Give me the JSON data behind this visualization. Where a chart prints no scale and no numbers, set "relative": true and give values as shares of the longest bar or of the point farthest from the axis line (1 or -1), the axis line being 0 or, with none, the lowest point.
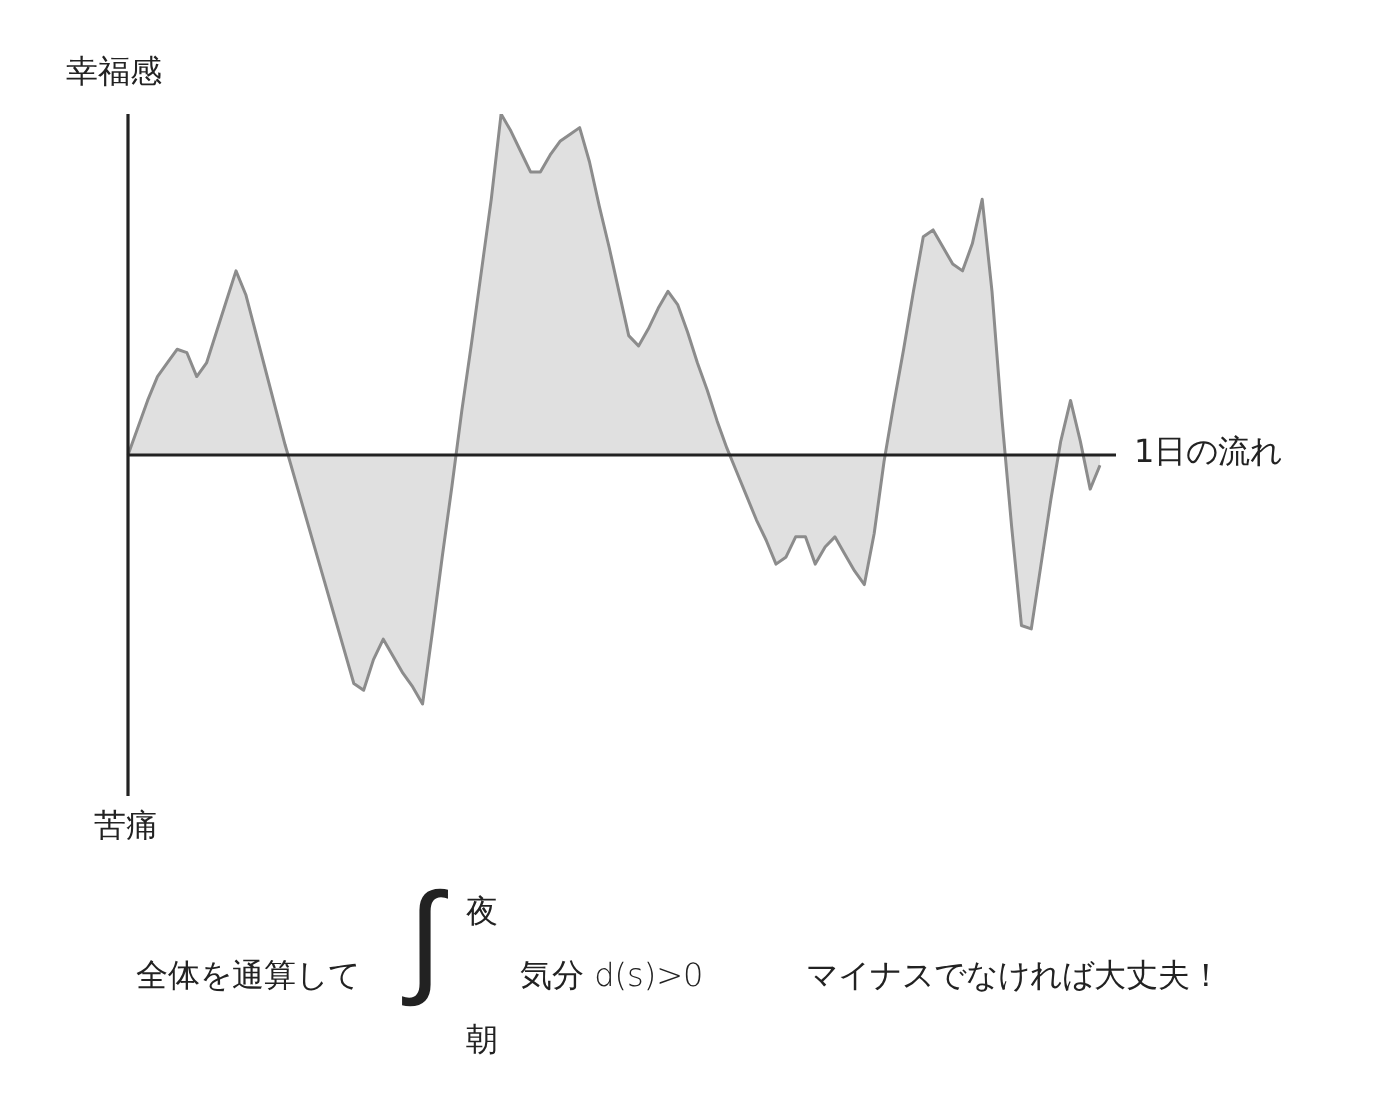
{
  "chart_data": {
    "type": "area",
    "relative": true,
    "ylabel": "幸福感",
    "xlabel": "1日の流れ",
    "annotations": [
      "苦痛",
      "全体を通算して",
      "∫",
      "夜",
      "朝",
      "気分 d(s)>0",
      "マイナスでなければ大丈夫！"
    ],
    "categories": [
      null,
      null,
      null,
      null,
      null,
      null,
      null,
      null,
      null,
      null,
      null,
      null,
      null,
      null,
      null,
      null,
      null,
      null,
      null,
      null,
      null,
      null,
      null,
      null,
      null,
      null,
      null,
      null,
      null,
      null,
      null,
      null,
      null,
      null,
      null,
      null,
      null,
      null,
      null,
      null,
      null,
      null,
      null,
      null,
      null,
      null,
      null,
      null,
      null,
      null,
      null,
      null,
      null,
      null,
      null,
      null,
      null,
      null,
      null,
      null,
      null,
      null,
      null,
      null,
      null,
      null,
      null,
      null,
      null,
      null,
      null,
      null,
      null,
      null,
      null,
      null,
      null,
      null,
      null,
      null,
      null,
      null,
      null,
      null,
      null,
      null,
      null,
      null,
      null,
      null,
      null,
      null,
      null,
      null,
      null,
      null,
      null,
      null,
      null,
      null
    ],
    "series": [
      {
        "color": "#8c8c8c",
        "values": [
          0,
          0.08,
          0.16,
          0.23,
          0.27,
          0.31,
          0.3,
          0.23,
          0.27,
          0.36,
          0.45,
          0.54,
          0.47,
          0.36,
          0.25,
          0.14,
          0.03,
          -0.07,
          -0.17,
          -0.27,
          -0.37,
          -0.47,
          -0.57,
          -0.67,
          -0.69,
          -0.6,
          -0.54,
          -0.59,
          -0.64,
          -0.68,
          -0.73,
          -0.52,
          -0.3,
          -0.09,
          0.13,
          0.33,
          0.54,
          0.75,
          1,
          0.95,
          0.89,
          0.83,
          0.83,
          0.88,
          0.92,
          0.94,
          0.96,
          0.86,
          0.73,
          0.61,
          0.48,
          0.35,
          0.32,
          0.37,
          0.43,
          0.48,
          0.44,
          0.36,
          0.27,
          0.19,
          0.1,
          0.02,
          -0.05,
          -0.12,
          -0.19,
          -0.25,
          -0.32,
          -0.3,
          -0.24,
          -0.24,
          -0.32,
          -0.27,
          -0.24,
          -0.29,
          -0.34,
          -0.38,
          -0.23,
          -0.02,
          0.15,
          0.31,
          0.48,
          0.64,
          0.66,
          0.61,
          0.56,
          0.54,
          0.62,
          0.75,
          0.48,
          0.11,
          -0.21,
          -0.5,
          -0.51,
          -0.32,
          -0.13,
          0.04,
          0.16,
          0.04,
          -0.1,
          -0.03
        ]
      }
    ],
    "legend": false
  }
}
